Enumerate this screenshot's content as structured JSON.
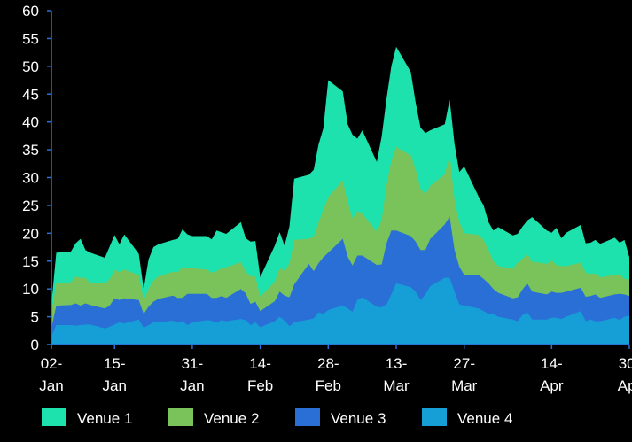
{
  "chart_data": {
    "type": "area",
    "stacked": true,
    "grid": false,
    "legend_position": "bottom",
    "ylim": [
      0,
      60
    ],
    "y_ticks": [
      "0",
      "5",
      "10",
      "15",
      "20",
      "25",
      "30",
      "35",
      "40",
      "45",
      "50",
      "55",
      "60"
    ],
    "x_range": [
      "2020-01-02",
      "2020-04-30"
    ],
    "x_ticks": [
      {
        "date": "2020-01-02",
        "label": [
          "02-",
          "Jan"
        ]
      },
      {
        "date": "2020-01-15",
        "label": [
          "15-",
          "Jan"
        ]
      },
      {
        "date": "2020-01-31",
        "label": [
          "31-",
          "Jan"
        ]
      },
      {
        "date": "2020-02-14",
        "label": [
          "14-",
          "Feb"
        ]
      },
      {
        "date": "2020-02-28",
        "label": [
          "28-",
          "Feb"
        ]
      },
      {
        "date": "2020-03-13",
        "label": [
          "13-",
          "Mar"
        ]
      },
      {
        "date": "2020-03-27",
        "label": [
          "27-",
          "Mar"
        ]
      },
      {
        "date": "2020-04-14",
        "label": [
          "14-",
          "Apr"
        ]
      },
      {
        "date": "2020-04-30",
        "label": [
          "30-",
          "Apr"
        ]
      }
    ],
    "x": [
      "2020-01-02",
      "2020-01-03",
      "2020-01-06",
      "2020-01-07",
      "2020-01-08",
      "2020-01-09",
      "2020-01-10",
      "2020-01-13",
      "2020-01-14",
      "2020-01-15",
      "2020-01-16",
      "2020-01-17",
      "2020-01-20",
      "2020-01-21",
      "2020-01-22",
      "2020-01-23",
      "2020-01-24",
      "2020-01-27",
      "2020-01-28",
      "2020-01-29",
      "2020-01-30",
      "2020-01-31",
      "2020-02-03",
      "2020-02-04",
      "2020-02-05",
      "2020-02-06",
      "2020-02-07",
      "2020-02-10",
      "2020-02-11",
      "2020-02-12",
      "2020-02-13",
      "2020-02-14",
      "2020-02-17",
      "2020-02-18",
      "2020-02-19",
      "2020-02-20",
      "2020-02-21",
      "2020-02-24",
      "2020-02-25",
      "2020-02-26",
      "2020-02-27",
      "2020-02-28",
      "2020-03-02",
      "2020-03-03",
      "2020-03-04",
      "2020-03-05",
      "2020-03-06",
      "2020-03-09",
      "2020-03-10",
      "2020-03-11",
      "2020-03-12",
      "2020-03-13",
      "2020-03-16",
      "2020-03-17",
      "2020-03-18",
      "2020-03-19",
      "2020-03-20",
      "2020-03-23",
      "2020-03-24",
      "2020-03-25",
      "2020-03-26",
      "2020-03-27",
      "2020-03-30",
      "2020-03-31",
      "2020-04-01",
      "2020-04-02",
      "2020-04-03",
      "2020-04-06",
      "2020-04-07",
      "2020-04-08",
      "2020-04-09",
      "2020-04-10",
      "2020-04-13",
      "2020-04-14",
      "2020-04-15",
      "2020-04-16",
      "2020-04-17",
      "2020-04-20",
      "2020-04-21",
      "2020-04-22",
      "2020-04-23",
      "2020-04-24",
      "2020-04-27",
      "2020-04-28",
      "2020-04-29",
      "2020-04-30"
    ],
    "series": [
      {
        "name": "Venue 4",
        "color": "#169fd6",
        "values": [
          1.5,
          3.5,
          3.5,
          3.4,
          3.5,
          3.6,
          3.6,
          2.9,
          3.2,
          3.6,
          4.0,
          3.8,
          4.5,
          3.0,
          3.5,
          4.0,
          4.0,
          4.3,
          3.9,
          4.2,
          3.5,
          4.0,
          4.4,
          4.3,
          3.9,
          4.4,
          4.2,
          4.6,
          4.4,
          3.5,
          4.0,
          3.1,
          4.2,
          5.0,
          4.3,
          3.3,
          4.0,
          4.5,
          4.7,
          5.8,
          5.5,
          6.2,
          7.0,
          6.5,
          5.9,
          8.0,
          8.5,
          6.8,
          6.7,
          7.2,
          9.0,
          11.0,
          10.3,
          9.5,
          8.0,
          9.0,
          10.5,
          12.0,
          12.0,
          9.5,
          7.2,
          7.0,
          6.5,
          6.0,
          5.5,
          5.5,
          5.0,
          4.5,
          4.2,
          5.3,
          5.8,
          4.5,
          4.5,
          4.8,
          4.8,
          4.6,
          5.0,
          6.0,
          4.2,
          4.5,
          4.2,
          4.2,
          4.8,
          4.4,
          5.0,
          5.2
        ]
      },
      {
        "name": "Venue 3",
        "color": "#2a6fd6",
        "values": [
          1.5,
          3.5,
          3.6,
          4.0,
          3.5,
          3.8,
          3.5,
          3.6,
          3.8,
          4.7,
          4.0,
          4.5,
          3.5,
          2.5,
          3.3,
          3.7,
          4.2,
          4.5,
          4.5,
          4.2,
          5.6,
          5.1,
          4.7,
          4.1,
          4.5,
          4.3,
          4.2,
          5.4,
          4.8,
          3.8,
          3.7,
          2.9,
          3.6,
          4.5,
          4.5,
          5.2,
          6.8,
          10.0,
          8.5,
          8.8,
          10.2,
          10.3,
          12.0,
          9.3,
          8.3,
          8.0,
          7.5,
          7.5,
          7.7,
          11.0,
          11.5,
          9.5,
          9.2,
          9.0,
          9.0,
          8.0,
          8.5,
          9.6,
          11.0,
          7.5,
          6.8,
          5.5,
          6.0,
          5.8,
          5.5,
          4.5,
          4.3,
          3.8,
          4.3,
          4.6,
          5.2,
          5.0,
          4.5,
          4.7,
          4.5,
          4.7,
          4.5,
          4.2,
          4.4,
          4.2,
          4.8,
          4.2,
          4.2,
          4.7,
          4.0,
          3.5
        ]
      },
      {
        "name": "Venue 2",
        "color": "#7ac35a",
        "values": [
          2.8,
          4.0,
          4.1,
          4.8,
          5.0,
          4.6,
          3.9,
          4.5,
          4.7,
          5.1,
          5.0,
          5.2,
          4.5,
          2.5,
          3.2,
          3.8,
          4.0,
          4.3,
          4.6,
          5.5,
          4.7,
          4.6,
          4.4,
          4.5,
          4.8,
          5.0,
          5.5,
          4.8,
          3.9,
          5.0,
          4.5,
          2.6,
          3.5,
          4.2,
          4.5,
          6.0,
          8.0,
          4.5,
          6.2,
          7.3,
          8.5,
          10.0,
          10.5,
          9.8,
          8.5,
          8.0,
          7.5,
          6.0,
          8.0,
          10.5,
          12.5,
          15.0,
          14.5,
          13.0,
          11.0,
          10.0,
          9.5,
          9.0,
          11.0,
          9.0,
          8.0,
          7.5,
          7.2,
          7.0,
          6.0,
          5.0,
          4.8,
          5.3,
          6.2,
          5.5,
          5.3,
          5.4,
          5.5,
          5.6,
          5.0,
          4.8,
          4.6,
          4.5,
          4.3,
          4.0,
          3.8,
          3.7,
          3.5,
          3.6,
          2.8,
          3.0
        ]
      },
      {
        "name": "Venue 1",
        "color": "#1ee2ad",
        "values": [
          1.5,
          5.5,
          5.5,
          6.0,
          7.0,
          5.0,
          5.5,
          4.6,
          5.9,
          6.3,
          5.0,
          6.3,
          3.8,
          2.0,
          5.3,
          6.0,
          5.8,
          5.7,
          6.0,
          6.8,
          6.0,
          5.8,
          6.0,
          6.0,
          7.3,
          6.5,
          6.0,
          7.2,
          6.0,
          6.2,
          6.4,
          3.5,
          6.5,
          6.5,
          4.5,
          6.7,
          11.0,
          11.5,
          12.0,
          14.0,
          14.7,
          21.0,
          16.0,
          14.0,
          15.0,
          13.0,
          15.0,
          12.5,
          15.0,
          15.5,
          17.0,
          18.0,
          15.0,
          12.0,
          11.0,
          11.0,
          10.0,
          9.0,
          10.0,
          10.0,
          9.0,
          12.0,
          6.8,
          6.2,
          5.0,
          5.5,
          7.0,
          6.0,
          5.2,
          5.8,
          6.0,
          8.0,
          6.0,
          5.0,
          6.7,
          5.0,
          6.0,
          6.8,
          5.3,
          5.6,
          6.0,
          6.0,
          6.7,
          5.6,
          7.0,
          4.0
        ]
      }
    ]
  },
  "legend": {
    "items": [
      {
        "label": "Venue 1",
        "color": "#1ee2ad"
      },
      {
        "label": "Venue 2",
        "color": "#7ac35a"
      },
      {
        "label": "Venue 3",
        "color": "#2a6fd6"
      },
      {
        "label": "Venue 4",
        "color": "#169fd6"
      }
    ]
  },
  "axis_color": "#2a6fd6"
}
